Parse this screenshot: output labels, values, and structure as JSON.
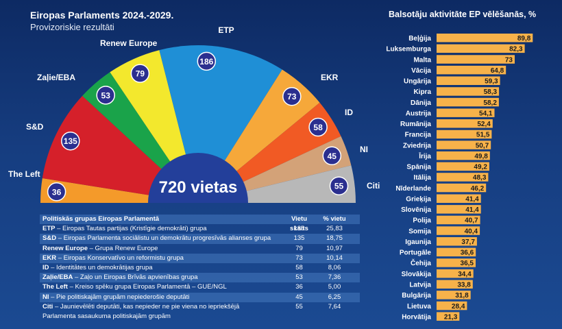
{
  "title": "Eiropas Parlaments 2024.-2029.",
  "subtitle": "Provizoriskie rezultāti",
  "center_label": "720 vietas",
  "table": {
    "headers": [
      "Politiskās grupas Eiropas Parlamentā",
      "Vietu skaits",
      "% vietu"
    ],
    "rows": [
      {
        "abbr": "ETP",
        "desc": " – Eiropas Tautas partijas (Kristīgie demokrāti) grupa",
        "seats": "186",
        "pct": "25,83"
      },
      {
        "abbr": "S&D",
        "desc": " – Eiropas Parlamenta sociālistu un demokrātu progresīvās alianses grupa",
        "seats": "135",
        "pct": "18,75"
      },
      {
        "abbr": "Renew Europe",
        "desc": " – Grupa Renew Europe",
        "seats": "79",
        "pct": "10,97"
      },
      {
        "abbr": "EKR",
        "desc": " – Eiropas Konservatīvo un reformistu grupa",
        "seats": "73",
        "pct": "10,14"
      },
      {
        "abbr": "ID",
        "desc": " – Identitātes un demokrātijas grupa",
        "seats": "58",
        "pct": "8,06"
      },
      {
        "abbr": "Zaļie/EBA",
        "desc": " – Zaļo un Eiropas Brīvās apvienības grupa",
        "seats": "53",
        "pct": "7,36"
      },
      {
        "abbr": "The Left",
        "desc": " – Kreiso spēku grupa Eiropas Parlamentā – GUE/NGL",
        "seats": "36",
        "pct": "5,00"
      },
      {
        "abbr": "NI",
        "desc": " – Pie politiskajām grupām nepiederošie deputāti",
        "seats": "45",
        "pct": "6,25"
      },
      {
        "abbr": "Citi",
        "desc": " – Jaunievēlēti deputāti, kas nepieder ne pie viena no iepriekšējā",
        "desc2": "Parlamenta sasaukuma politiskajām grupām",
        "seats": "55",
        "pct": "7,64"
      }
    ]
  },
  "right_title": "Balsotāju aktivitāte EP vēlēšanās, %",
  "chart_data": [
    {
      "type": "pie",
      "title": "Eiropas Parlaments 2024.-2029.",
      "subtitle": "Provizoriskie rezultāti",
      "shape": "semicircle",
      "center_label": "720 vietas",
      "slices": [
        {
          "label": "The Left",
          "value": 36,
          "color": "#f49a2a"
        },
        {
          "label": "S&D",
          "value": 135,
          "color": "#d5202a"
        },
        {
          "label": "Zaļie/EBA",
          "value": 53,
          "color": "#1aa34a"
        },
        {
          "label": "Renew Europe",
          "value": 79,
          "color": "#f3e82d"
        },
        {
          "label": "ETP",
          "value": 186,
          "color": "#1f8fd6"
        },
        {
          "label": "EKR",
          "value": 73,
          "color": "#f6a83a"
        },
        {
          "label": "ID",
          "value": 58,
          "color": "#f15a24"
        },
        {
          "label": "NI",
          "value": 45,
          "color": "#d3a278"
        },
        {
          "label": "Citi",
          "value": 55,
          "color": "#b8b8b8"
        }
      ]
    },
    {
      "type": "bar",
      "orientation": "horizontal",
      "title": "Balsotāju aktivitāte EP vēlēšanās, %",
      "bar_color": "#f7b24a",
      "xlim": [
        0,
        100
      ],
      "categories": [
        "Beļģija",
        "Luksemburga",
        "Malta",
        "Vācija",
        "Ungārija",
        "Kipra",
        "Dānija",
        "Austrija",
        "Rumānija",
        "Francija",
        "Zviedrija",
        "Īrija",
        "Spānija",
        "Itālija",
        "Nīderlande",
        "Grieķija",
        "Slovēnija",
        "Polija",
        "Somija",
        "Igaunija",
        "Portugāle",
        "Čehija",
        "Slovākija",
        "Latvija",
        "Bulgārija",
        "Lietuva",
        "Horvātija"
      ],
      "values": [
        89.8,
        82.3,
        73,
        64.8,
        59.3,
        58.3,
        58.2,
        54.1,
        52.4,
        51.5,
        50.7,
        49.8,
        49.2,
        48.3,
        46.2,
        41.4,
        41.4,
        40.7,
        40.4,
        37.7,
        36.6,
        36.5,
        34.4,
        33.8,
        31.8,
        28.4,
        21.3
      ],
      "value_labels": [
        "89,8",
        "82,3",
        "73",
        "64,8",
        "59,3",
        "58,3",
        "58,2",
        "54,1",
        "52,4",
        "51,5",
        "50,7",
        "49,8",
        "49,2",
        "48,3",
        "46,2",
        "41,4",
        "41,4",
        "40,7",
        "40,4",
        "37,7",
        "36,6",
        "36,5",
        "34,4",
        "33,8",
        "31,8",
        "28,4",
        "21,3"
      ]
    }
  ]
}
